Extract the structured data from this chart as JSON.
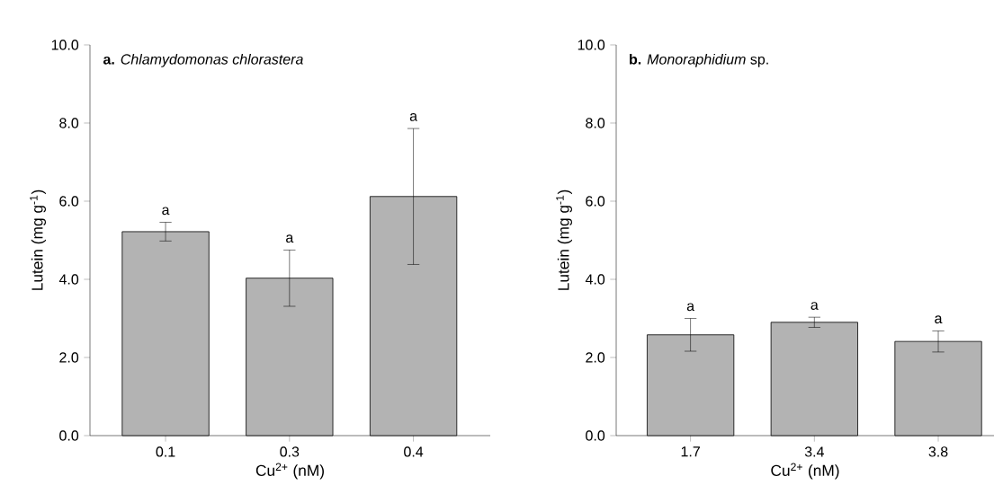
{
  "chart_data": [
    {
      "type": "bar",
      "title": "**a.** *Chlamydomonas chlorastera*",
      "xlabel": "Cu$^{2+}$ (nM)",
      "ylabel": "Lutein (mg g$^{-1}$)",
      "categories": [
        "0.1",
        "0.3",
        "0.4"
      ],
      "values": [
        5.22,
        4.03,
        6.12
      ],
      "errors": [
        0.24,
        0.72,
        1.74
      ],
      "color": "#b3b3b3",
      "ylim": [
        0,
        10
      ],
      "yticks": [
        {
          "value": 0,
          "label": "0.0"
        },
        {
          "value": 2,
          "label": "2.0"
        },
        {
          "value": 4,
          "label": "4.0"
        },
        {
          "value": 6,
          "label": "6.0"
        },
        {
          "value": 8,
          "label": "8.0"
        },
        {
          "value": 10,
          "label": "10.0"
        }
      ],
      "annotations": [
        "a",
        "a",
        "a"
      ]
    },
    {
      "type": "bar",
      "title": "**b.** *Monoraphidium* sp.",
      "xlabel": "Cu$^{2+}$ (nM)",
      "ylabel": "Lutein (mg g$^{-1}$)",
      "categories": [
        "1.7",
        "3.4",
        "3.8"
      ],
      "values": [
        2.58,
        2.9,
        2.41
      ],
      "errors": [
        0.42,
        0.13,
        0.27
      ],
      "color": "#b3b3b3",
      "ylim": [
        0,
        10
      ],
      "yticks": [
        {
          "value": 0,
          "label": "0.0"
        },
        {
          "value": 2,
          "label": "2.0"
        },
        {
          "value": 4,
          "label": "4.0"
        },
        {
          "value": 6,
          "label": "6.0"
        },
        {
          "value": 8,
          "label": "8.0"
        },
        {
          "value": 10,
          "label": "10.0"
        }
      ],
      "annotations": [
        "a",
        "a",
        "a"
      ]
    }
  ]
}
